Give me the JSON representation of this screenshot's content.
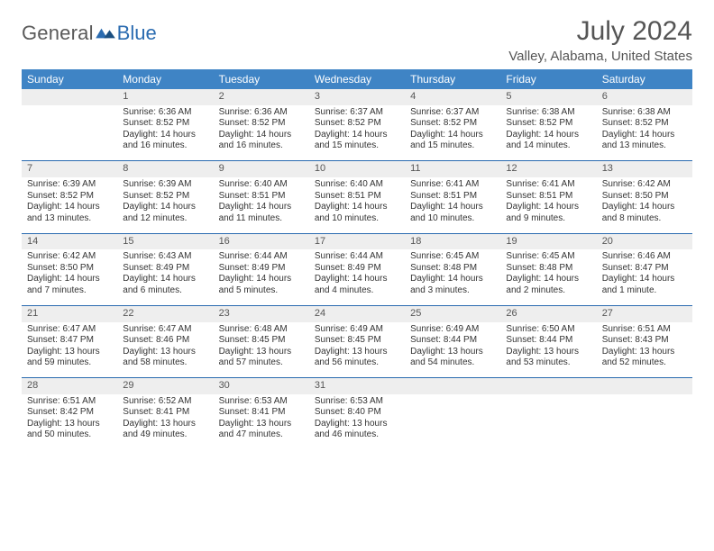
{
  "brand": {
    "word1": "General",
    "word2": "Blue",
    "color_general": "#5a5a5a",
    "color_blue": "#2a6bb0"
  },
  "title": "July 2024",
  "location": "Valley, Alabama, United States",
  "colors": {
    "header_bg": "#3f84c5",
    "header_text": "#ffffff",
    "daynum_bg": "#eeeeee",
    "rule": "#2a6bb0",
    "body_text": "#333333",
    "title_text": "#555555"
  },
  "weekdays": [
    "Sunday",
    "Monday",
    "Tuesday",
    "Wednesday",
    "Thursday",
    "Friday",
    "Saturday"
  ],
  "weeks": [
    [
      {
        "n": "",
        "sunrise": "",
        "sunset": "",
        "daylight": ""
      },
      {
        "n": "1",
        "sunrise": "Sunrise: 6:36 AM",
        "sunset": "Sunset: 8:52 PM",
        "daylight": "Daylight: 14 hours and 16 minutes."
      },
      {
        "n": "2",
        "sunrise": "Sunrise: 6:36 AM",
        "sunset": "Sunset: 8:52 PM",
        "daylight": "Daylight: 14 hours and 16 minutes."
      },
      {
        "n": "3",
        "sunrise": "Sunrise: 6:37 AM",
        "sunset": "Sunset: 8:52 PM",
        "daylight": "Daylight: 14 hours and 15 minutes."
      },
      {
        "n": "4",
        "sunrise": "Sunrise: 6:37 AM",
        "sunset": "Sunset: 8:52 PM",
        "daylight": "Daylight: 14 hours and 15 minutes."
      },
      {
        "n": "5",
        "sunrise": "Sunrise: 6:38 AM",
        "sunset": "Sunset: 8:52 PM",
        "daylight": "Daylight: 14 hours and 14 minutes."
      },
      {
        "n": "6",
        "sunrise": "Sunrise: 6:38 AM",
        "sunset": "Sunset: 8:52 PM",
        "daylight": "Daylight: 14 hours and 13 minutes."
      }
    ],
    [
      {
        "n": "7",
        "sunrise": "Sunrise: 6:39 AM",
        "sunset": "Sunset: 8:52 PM",
        "daylight": "Daylight: 14 hours and 13 minutes."
      },
      {
        "n": "8",
        "sunrise": "Sunrise: 6:39 AM",
        "sunset": "Sunset: 8:52 PM",
        "daylight": "Daylight: 14 hours and 12 minutes."
      },
      {
        "n": "9",
        "sunrise": "Sunrise: 6:40 AM",
        "sunset": "Sunset: 8:51 PM",
        "daylight": "Daylight: 14 hours and 11 minutes."
      },
      {
        "n": "10",
        "sunrise": "Sunrise: 6:40 AM",
        "sunset": "Sunset: 8:51 PM",
        "daylight": "Daylight: 14 hours and 10 minutes."
      },
      {
        "n": "11",
        "sunrise": "Sunrise: 6:41 AM",
        "sunset": "Sunset: 8:51 PM",
        "daylight": "Daylight: 14 hours and 10 minutes."
      },
      {
        "n": "12",
        "sunrise": "Sunrise: 6:41 AM",
        "sunset": "Sunset: 8:51 PM",
        "daylight": "Daylight: 14 hours and 9 minutes."
      },
      {
        "n": "13",
        "sunrise": "Sunrise: 6:42 AM",
        "sunset": "Sunset: 8:50 PM",
        "daylight": "Daylight: 14 hours and 8 minutes."
      }
    ],
    [
      {
        "n": "14",
        "sunrise": "Sunrise: 6:42 AM",
        "sunset": "Sunset: 8:50 PM",
        "daylight": "Daylight: 14 hours and 7 minutes."
      },
      {
        "n": "15",
        "sunrise": "Sunrise: 6:43 AM",
        "sunset": "Sunset: 8:49 PM",
        "daylight": "Daylight: 14 hours and 6 minutes."
      },
      {
        "n": "16",
        "sunrise": "Sunrise: 6:44 AM",
        "sunset": "Sunset: 8:49 PM",
        "daylight": "Daylight: 14 hours and 5 minutes."
      },
      {
        "n": "17",
        "sunrise": "Sunrise: 6:44 AM",
        "sunset": "Sunset: 8:49 PM",
        "daylight": "Daylight: 14 hours and 4 minutes."
      },
      {
        "n": "18",
        "sunrise": "Sunrise: 6:45 AM",
        "sunset": "Sunset: 8:48 PM",
        "daylight": "Daylight: 14 hours and 3 minutes."
      },
      {
        "n": "19",
        "sunrise": "Sunrise: 6:45 AM",
        "sunset": "Sunset: 8:48 PM",
        "daylight": "Daylight: 14 hours and 2 minutes."
      },
      {
        "n": "20",
        "sunrise": "Sunrise: 6:46 AM",
        "sunset": "Sunset: 8:47 PM",
        "daylight": "Daylight: 14 hours and 1 minute."
      }
    ],
    [
      {
        "n": "21",
        "sunrise": "Sunrise: 6:47 AM",
        "sunset": "Sunset: 8:47 PM",
        "daylight": "Daylight: 13 hours and 59 minutes."
      },
      {
        "n": "22",
        "sunrise": "Sunrise: 6:47 AM",
        "sunset": "Sunset: 8:46 PM",
        "daylight": "Daylight: 13 hours and 58 minutes."
      },
      {
        "n": "23",
        "sunrise": "Sunrise: 6:48 AM",
        "sunset": "Sunset: 8:45 PM",
        "daylight": "Daylight: 13 hours and 57 minutes."
      },
      {
        "n": "24",
        "sunrise": "Sunrise: 6:49 AM",
        "sunset": "Sunset: 8:45 PM",
        "daylight": "Daylight: 13 hours and 56 minutes."
      },
      {
        "n": "25",
        "sunrise": "Sunrise: 6:49 AM",
        "sunset": "Sunset: 8:44 PM",
        "daylight": "Daylight: 13 hours and 54 minutes."
      },
      {
        "n": "26",
        "sunrise": "Sunrise: 6:50 AM",
        "sunset": "Sunset: 8:44 PM",
        "daylight": "Daylight: 13 hours and 53 minutes."
      },
      {
        "n": "27",
        "sunrise": "Sunrise: 6:51 AM",
        "sunset": "Sunset: 8:43 PM",
        "daylight": "Daylight: 13 hours and 52 minutes."
      }
    ],
    [
      {
        "n": "28",
        "sunrise": "Sunrise: 6:51 AM",
        "sunset": "Sunset: 8:42 PM",
        "daylight": "Daylight: 13 hours and 50 minutes."
      },
      {
        "n": "29",
        "sunrise": "Sunrise: 6:52 AM",
        "sunset": "Sunset: 8:41 PM",
        "daylight": "Daylight: 13 hours and 49 minutes."
      },
      {
        "n": "30",
        "sunrise": "Sunrise: 6:53 AM",
        "sunset": "Sunset: 8:41 PM",
        "daylight": "Daylight: 13 hours and 47 minutes."
      },
      {
        "n": "31",
        "sunrise": "Sunrise: 6:53 AM",
        "sunset": "Sunset: 8:40 PM",
        "daylight": "Daylight: 13 hours and 46 minutes."
      },
      {
        "n": "",
        "sunrise": "",
        "sunset": "",
        "daylight": ""
      },
      {
        "n": "",
        "sunrise": "",
        "sunset": "",
        "daylight": ""
      },
      {
        "n": "",
        "sunrise": "",
        "sunset": "",
        "daylight": ""
      }
    ]
  ]
}
